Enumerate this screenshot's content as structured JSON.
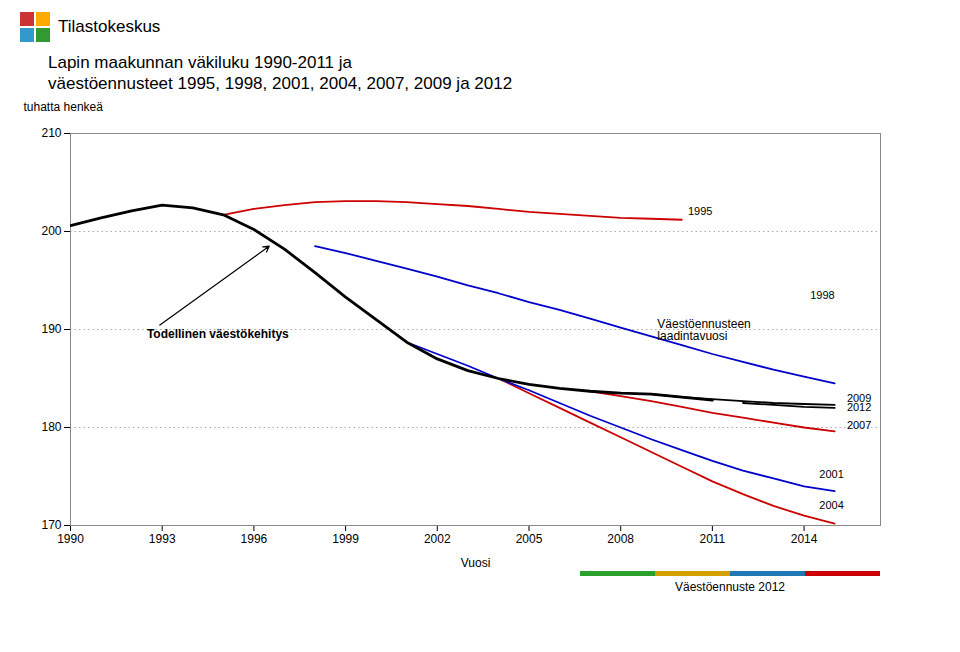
{
  "chart_data": {
    "type": "line",
    "title": "Lapin maakunnan väkiluku 1990-2011 ja\nväestöennusteet 1995, 1998, 2001, 2004, 2007, 2009 ja 2012",
    "xlabel": "Vuosi",
    "ylabel": "tuhatta henkeä",
    "xlim": [
      1990,
      2016.5
    ],
    "ylim": [
      170,
      210
    ],
    "xticks": [
      1990,
      1993,
      1996,
      1999,
      2002,
      2005,
      2008,
      2011,
      2014
    ],
    "yticks": [
      170,
      180,
      190,
      200,
      210
    ],
    "grid": true,
    "series": [
      {
        "color": "#000000",
        "x": [
          1990,
          1991,
          1992,
          1993,
          1994,
          1995,
          1996,
          1997,
          1998,
          1999,
          2000,
          2001,
          2002,
          2003,
          2004,
          2005,
          2006,
          2007,
          2008,
          2009,
          2010,
          2011
        ],
        "values": [
          200.6,
          201.4,
          202.1,
          202.7,
          202.4,
          201.7,
          200.2,
          198.2,
          195.8,
          193.3,
          191.0,
          188.7,
          187.0,
          185.8,
          185.0,
          184.4,
          184.0,
          183.7,
          183.5,
          183.4,
          183.1,
          182.8
        ]
      },
      {
        "color": "#cc0000",
        "x": [
          1995,
          1996,
          1997,
          1998,
          1999,
          2000,
          2001,
          2002,
          2003,
          2004,
          2005,
          2006,
          2007,
          2008,
          2009,
          2010
        ],
        "values": [
          201.7,
          202.3,
          202.7,
          203.0,
          203.1,
          203.1,
          203.0,
          202.8,
          202.6,
          202.3,
          202.0,
          201.8,
          201.6,
          201.4,
          201.3,
          201.2
        ]
      },
      {
        "color": "#0000cc",
        "x": [
          1998,
          1999,
          2000,
          2001,
          2002,
          2003,
          2004,
          2005,
          2006,
          2007,
          2008,
          2009,
          2010,
          2011,
          2012,
          2013,
          2014,
          2015
        ],
        "values": [
          198.5,
          197.8,
          197.0,
          196.2,
          195.4,
          194.5,
          193.7,
          192.8,
          192.0,
          191.1,
          190.2,
          189.3,
          188.4,
          187.5,
          186.7,
          185.9,
          185.2,
          184.5
        ]
      },
      {
        "color": "#0000cc",
        "x": [
          2001,
          2002,
          2003,
          2004,
          2005,
          2006,
          2007,
          2008,
          2009,
          2010,
          2011,
          2012,
          2013,
          2014,
          2015
        ],
        "values": [
          188.7,
          187.5,
          186.3,
          185.0,
          183.8,
          182.5,
          181.2,
          180.0,
          178.8,
          177.7,
          176.6,
          175.6,
          174.8,
          174.0,
          173.5
        ]
      },
      {
        "color": "#cc0000",
        "x": [
          2004,
          2005,
          2006,
          2007,
          2008,
          2009,
          2010,
          2011,
          2012,
          2013,
          2014,
          2015
        ],
        "values": [
          185.0,
          183.5,
          182.0,
          180.5,
          179.0,
          177.5,
          176.0,
          174.5,
          173.2,
          172.0,
          171.0,
          170.2
        ]
      },
      {
        "color": "#cc0000",
        "x": [
          2007,
          2008,
          2009,
          2010,
          2011,
          2012,
          2013,
          2014,
          2015
        ],
        "values": [
          183.7,
          183.2,
          182.7,
          182.1,
          181.5,
          181.0,
          180.5,
          180.0,
          179.6
        ]
      },
      {
        "color": "#000000",
        "x": [
          2009,
          2010,
          2011,
          2012,
          2013,
          2014,
          2015
        ],
        "values": [
          183.4,
          183.1,
          182.9,
          182.7,
          182.5,
          182.4,
          182.3
        ]
      },
      {
        "color": "#000000",
        "x": [
          2012,
          2013,
          2014,
          2015
        ],
        "values": [
          182.5,
          182.3,
          182.1,
          182.0
        ]
      }
    ],
    "annotations": [
      {
        "text": "Todellinen väestökehitys",
        "x": 1992.5,
        "y": 189.5,
        "arrow_x": 1996.5,
        "arrow_y": 198.5
      },
      {
        "text": "1995",
        "x": 2010.2,
        "y": 202.0
      },
      {
        "text": "1998",
        "x": 2014.2,
        "y": 193.5
      },
      {
        "text": "Väestöennusteen\nlaadintavuosi",
        "x": 2009.2,
        "y": 191.0
      },
      {
        "text": "2009",
        "x": 2015.4,
        "y": 183.0
      },
      {
        "text": "2012",
        "x": 2015.4,
        "y": 182.0
      },
      {
        "text": "2007",
        "x": 2015.4,
        "y": 180.2
      },
      {
        "text": "2001",
        "x": 2014.5,
        "y": 175.2
      },
      {
        "text": "2004",
        "x": 2014.5,
        "y": 172.0
      }
    ],
    "logo": {
      "text": "Tilastokeskus",
      "colors": [
        "#cc3333",
        "#ffaa00",
        "#3399cc",
        "#339933"
      ]
    },
    "caption": {
      "text": "Väestöennuste 2012",
      "colors": [
        "#2ca02c",
        "#d4a000",
        "#1f77b4",
        "#cc0000"
      ]
    }
  }
}
